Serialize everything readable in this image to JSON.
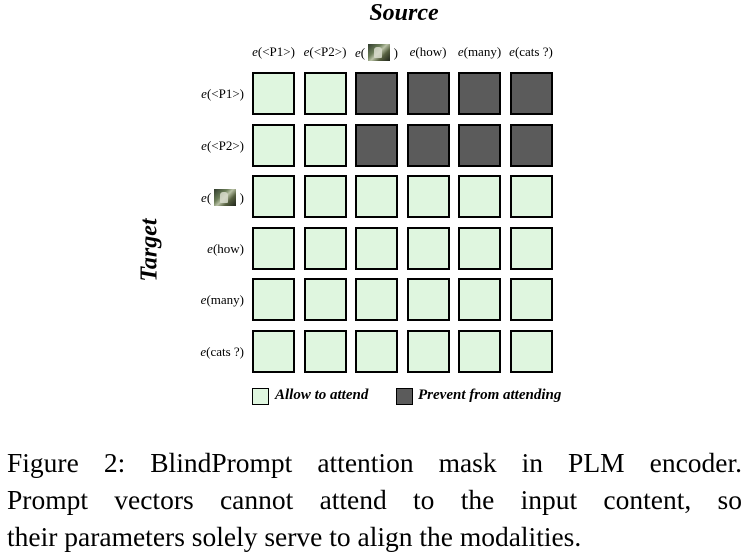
{
  "diagram": {
    "source_title": "Source",
    "target_title": "Target",
    "columns": [
      {
        "prefix": "e",
        "text": "(<P1>)",
        "has_image": false
      },
      {
        "prefix": "e",
        "text": "(<P2>)",
        "has_image": false
      },
      {
        "prefix": "e",
        "text": "( ",
        "close": ")",
        "has_image": true
      },
      {
        "prefix": "e",
        "text": "(how)",
        "has_image": false
      },
      {
        "prefix": "e",
        "text": "(many)",
        "has_image": false
      },
      {
        "prefix": "e",
        "text": "(cats ?)",
        "has_image": false
      }
    ],
    "rows": [
      {
        "prefix": "e",
        "text": "(<P1>)",
        "has_image": false
      },
      {
        "prefix": "e",
        "text": "(<P2>)",
        "has_image": false
      },
      {
        "prefix": "e",
        "text": "( ",
        "close": ")",
        "has_image": true
      },
      {
        "prefix": "e",
        "text": "(how)",
        "has_image": false
      },
      {
        "prefix": "e",
        "text": "(many)",
        "has_image": false
      },
      {
        "prefix": "e",
        "text": "(cats ?)",
        "has_image": false
      }
    ],
    "mask": [
      [
        1,
        1,
        0,
        0,
        0,
        0
      ],
      [
        1,
        1,
        0,
        0,
        0,
        0
      ],
      [
        1,
        1,
        1,
        1,
        1,
        1
      ],
      [
        1,
        1,
        1,
        1,
        1,
        1
      ],
      [
        1,
        1,
        1,
        1,
        1,
        1
      ],
      [
        1,
        1,
        1,
        1,
        1,
        1
      ]
    ],
    "legend": {
      "allow": "Allow to attend",
      "prevent": "Prevent from attending"
    },
    "colors": {
      "allow": "#dff6df",
      "prevent": "#5b5b5b"
    }
  },
  "caption": {
    "line1": "Figure 2: BlindPrompt attention mask in PLM encoder.",
    "line2": "Prompt vectors cannot attend to the input content, so",
    "line3": "their parameters solely serve to align the modalities."
  }
}
